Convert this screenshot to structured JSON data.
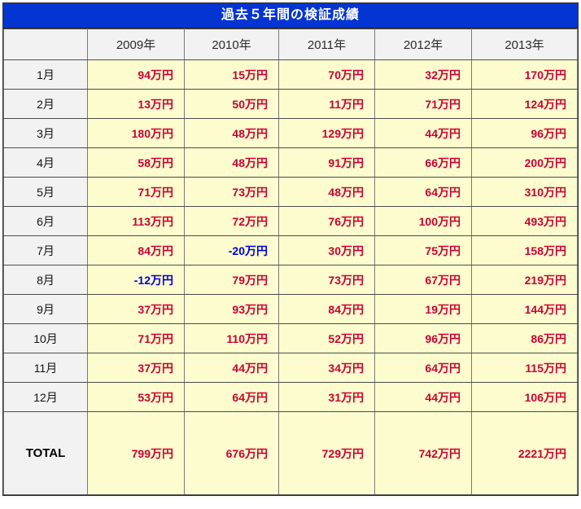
{
  "title": "過去５年間の検証成績",
  "unit": "万円",
  "table": {
    "corner_label": "",
    "year_headers": [
      "2009年",
      "2010年",
      "2011年",
      "2012年",
      "2013年"
    ],
    "rows": [
      {
        "month": "1月",
        "values": [
          "94万円",
          "15万円",
          "70万円",
          "32万円",
          "170万円"
        ]
      },
      {
        "month": "2月",
        "values": [
          "13万円",
          "50万円",
          "11万円",
          "71万円",
          "124万円"
        ]
      },
      {
        "month": "3月",
        "values": [
          "180万円",
          "48万円",
          "129万円",
          "44万円",
          "96万円"
        ]
      },
      {
        "month": "4月",
        "values": [
          "58万円",
          "48万円",
          "91万円",
          "66万円",
          "200万円"
        ]
      },
      {
        "month": "5月",
        "values": [
          "71万円",
          "73万円",
          "48万円",
          "64万円",
          "310万円"
        ]
      },
      {
        "month": "6月",
        "values": [
          "113万円",
          "72万円",
          "76万円",
          "100万円",
          "493万円"
        ]
      },
      {
        "month": "7月",
        "values": [
          "84万円",
          "-20万円",
          "30万円",
          "75万円",
          "158万円"
        ]
      },
      {
        "month": "8月",
        "values": [
          "-12万円",
          "79万円",
          "73万円",
          "67万円",
          "219万円"
        ]
      },
      {
        "month": "9月",
        "values": [
          "37万円",
          "93万円",
          "84万円",
          "19万円",
          "144万円"
        ]
      },
      {
        "month": "10月",
        "values": [
          "71万円",
          "110万円",
          "52万円",
          "96万円",
          "86万円"
        ]
      },
      {
        "month": "11月",
        "values": [
          "37万円",
          "44万円",
          "34万円",
          "64万円",
          "115万円"
        ]
      },
      {
        "month": "12月",
        "values": [
          "53万円",
          "64万円",
          "31万円",
          "44万円",
          "106万円"
        ]
      }
    ],
    "total_row": {
      "month": "TOTAL",
      "values": [
        "799万円",
        "676万円",
        "729万円",
        "742万円",
        "2221万円"
      ]
    }
  },
  "colors": {
    "title_bg": "#0435d2",
    "title_text": "#ffffff",
    "header_bg": "#f2f2f2",
    "cell_bg": "#fcfcce",
    "positive_text": "#cc0033",
    "negative_text": "#0000dd",
    "border_horizontal": "#4d4d4d",
    "border_vertical": "#7a7a7a"
  },
  "chart_data": {
    "type": "table",
    "title": "過去５年間の検証成績",
    "unit": "万円",
    "categories": [
      "1月",
      "2月",
      "3月",
      "4月",
      "5月",
      "6月",
      "7月",
      "8月",
      "9月",
      "10月",
      "11月",
      "12月",
      "TOTAL"
    ],
    "series": [
      {
        "name": "2009年",
        "values": [
          94,
          13,
          180,
          58,
          71,
          113,
          84,
          -12,
          37,
          71,
          37,
          53,
          799
        ]
      },
      {
        "name": "2010年",
        "values": [
          15,
          50,
          48,
          48,
          73,
          72,
          -20,
          79,
          93,
          110,
          44,
          64,
          676
        ]
      },
      {
        "name": "2011年",
        "values": [
          70,
          11,
          129,
          91,
          48,
          76,
          30,
          73,
          84,
          52,
          34,
          31,
          729
        ]
      },
      {
        "name": "2012年",
        "values": [
          32,
          71,
          44,
          66,
          64,
          100,
          75,
          67,
          19,
          96,
          64,
          44,
          742
        ]
      },
      {
        "name": "2013年",
        "values": [
          170,
          124,
          96,
          200,
          310,
          493,
          158,
          219,
          144,
          86,
          115,
          106,
          2221
        ]
      }
    ]
  }
}
